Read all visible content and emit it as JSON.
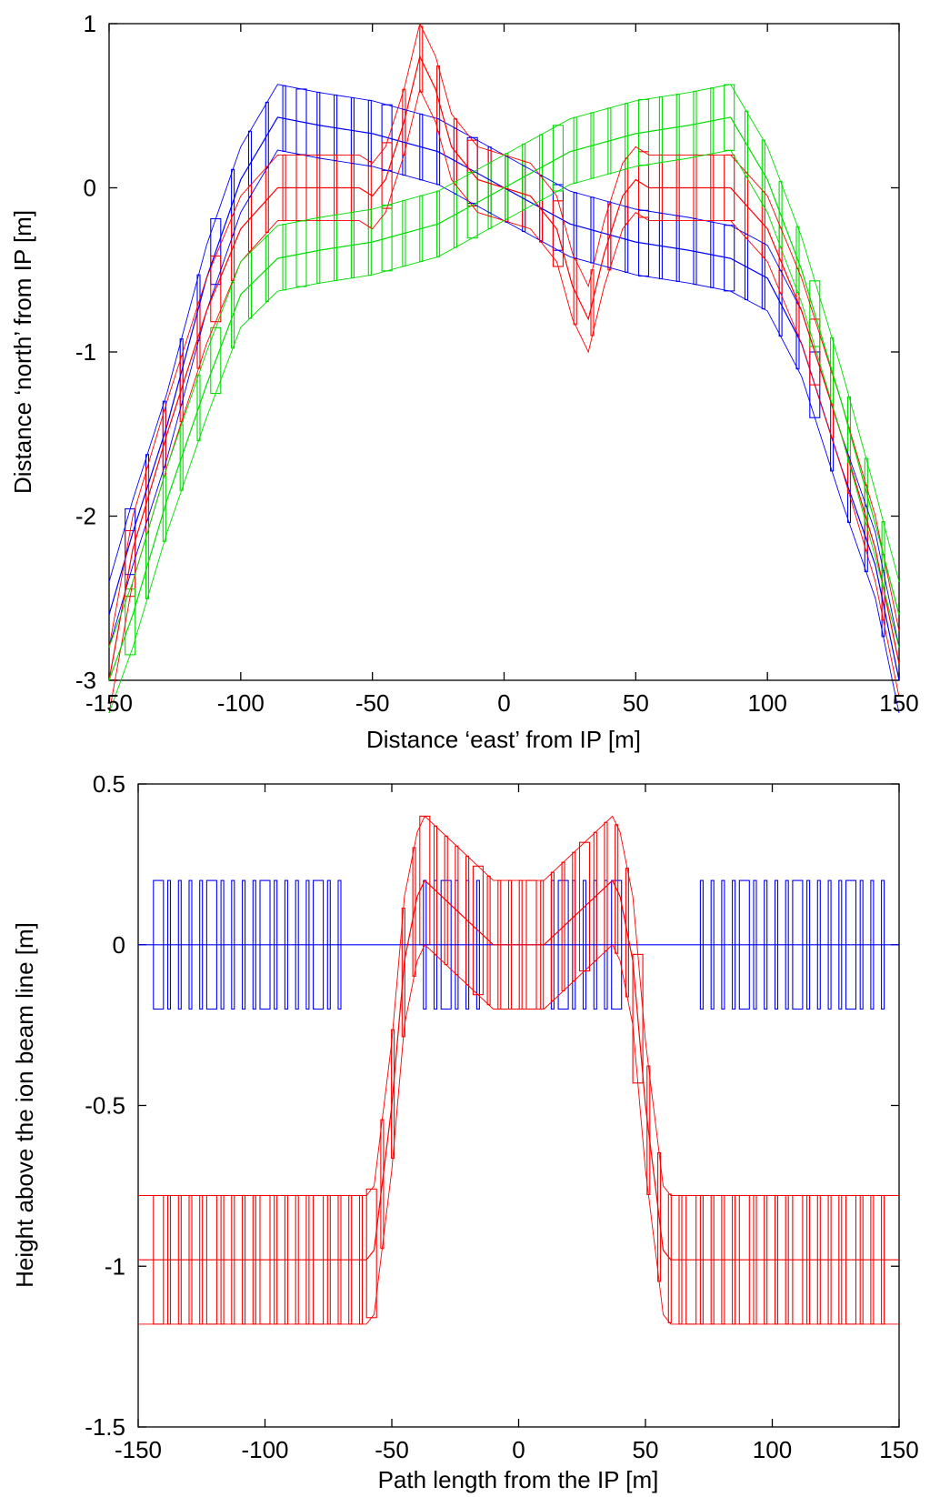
{
  "colors": {
    "blue": "#0000ff",
    "red": "#ff0000",
    "green": "#00dd00",
    "axis": "#000000"
  },
  "chart_data": [
    {
      "type": "line",
      "xlabel": "Distance ‘east’ from IP [m]",
      "ylabel": "Distance ‘north’ from IP [m]",
      "xlim": [
        -150,
        150
      ],
      "ylim": [
        -3,
        1
      ],
      "xticks": [
        "-150",
        "-100",
        "-50",
        "0",
        "50",
        "100",
        "150"
      ],
      "yticks": [
        "1",
        "0",
        "-1",
        "-2",
        "-3"
      ],
      "series": [
        {
          "color": "blue",
          "x": [
            -150,
            -141,
            -128,
            -113,
            -100,
            -86,
            -70,
            -50,
            -25,
            0,
            25,
            50,
            70,
            86,
            100,
            113,
            128,
            141,
            150
          ],
          "y": [
            -2.6,
            -2.1,
            -1.45,
            -0.55,
            0.05,
            0.43,
            0.38,
            0.33,
            0.22,
            0.0,
            -0.22,
            -0.33,
            -0.38,
            -0.43,
            -0.55,
            -0.95,
            -1.7,
            -2.3,
            -3.0
          ]
        },
        {
          "color": "red",
          "x": [
            -150,
            -141,
            -128,
            -113,
            -100,
            -86,
            -70,
            -55,
            -50,
            -45,
            -38,
            -32,
            -26,
            -20,
            -10,
            10,
            20,
            26,
            32,
            38,
            45,
            50,
            55,
            70,
            86,
            100,
            113,
            128,
            141,
            150
          ],
          "y": [
            -3.0,
            -2.2,
            -1.5,
            -0.75,
            -0.25,
            0.0,
            0.0,
            0.0,
            -0.05,
            0.05,
            0.4,
            0.8,
            0.6,
            0.25,
            0.05,
            -0.05,
            -0.25,
            -0.6,
            -0.8,
            -0.4,
            -0.05,
            0.05,
            0.0,
            0.0,
            0.0,
            -0.25,
            -0.75,
            -1.5,
            -2.2,
            -2.9
          ]
        },
        {
          "color": "green",
          "x": [
            -150,
            -141,
            -128,
            -113,
            -100,
            -86,
            -70,
            -50,
            -25,
            0,
            25,
            50,
            70,
            86,
            100,
            113,
            128,
            141,
            150
          ],
          "y": [
            -3.0,
            -2.6,
            -1.9,
            -1.2,
            -0.65,
            -0.43,
            -0.38,
            -0.33,
            -0.22,
            0.0,
            0.22,
            0.33,
            0.38,
            0.43,
            0.05,
            -0.5,
            -1.3,
            -2.05,
            -2.6
          ]
        }
      ]
    },
    {
      "type": "line",
      "xlabel": "Path length from the IP [m]",
      "ylabel": "Height above the ion beam line [m]",
      "xlim": [
        -150,
        150
      ],
      "ylim": [
        -1.5,
        0.5
      ],
      "xticks": [
        "-150",
        "-100",
        "-50",
        "0",
        "50",
        "100",
        "150"
      ],
      "yticks": [
        "0.5",
        "0",
        "-0.5",
        "-1",
        "-1.5"
      ],
      "series": [
        {
          "color": "blue",
          "x": [
            -150,
            150
          ],
          "y": [
            0,
            0
          ]
        },
        {
          "color": "red",
          "x": [
            -150,
            -60,
            -57,
            -50,
            -45,
            -40,
            -37,
            -10,
            0,
            10,
            37,
            40,
            45,
            50,
            57,
            60,
            150
          ],
          "y": [
            -0.98,
            -0.98,
            -0.95,
            -0.5,
            -0.05,
            0.15,
            0.2,
            0.0,
            0.0,
            0.0,
            0.2,
            0.15,
            -0.05,
            -0.5,
            -0.95,
            -0.98,
            -0.98
          ]
        }
      ]
    }
  ]
}
